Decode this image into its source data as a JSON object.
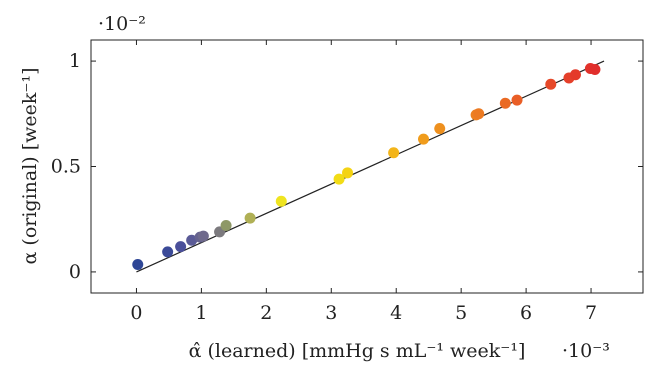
{
  "chart_data": {
    "type": "scatter",
    "title": "",
    "xlabel": "α̂ (learned) [mmHg s mL⁻¹ week⁻¹]",
    "ylabel": "α (original) [week⁻¹]",
    "x_scale_label": "·10⁻³",
    "y_scale_label": "·10⁻²",
    "xlim": [
      -0.7,
      7.8
    ],
    "ylim": [
      -0.1,
      1.1
    ],
    "x_ticks": [
      0,
      1,
      2,
      3,
      4,
      5,
      6,
      7
    ],
    "x_tick_labels": [
      "0",
      "1",
      "2",
      "3",
      "4",
      "5",
      "6",
      "7"
    ],
    "y_ticks": [
      0,
      0.5,
      1
    ],
    "y_tick_labels": [
      "0",
      "0.5",
      "1"
    ],
    "grid": false,
    "fit_line": {
      "x": [
        0,
        7.2
      ],
      "y": [
        0,
        1.0
      ]
    },
    "points": [
      {
        "x": 0.02,
        "y": 0.035,
        "color": "#2e4696"
      },
      {
        "x": 0.48,
        "y": 0.095,
        "color": "#3b4a98"
      },
      {
        "x": 0.68,
        "y": 0.12,
        "color": "#4a4f9a"
      },
      {
        "x": 0.85,
        "y": 0.15,
        "color": "#5a5a96"
      },
      {
        "x": 0.98,
        "y": 0.165,
        "color": "#66638f"
      },
      {
        "x": 1.03,
        "y": 0.17,
        "color": "#6f6a8c"
      },
      {
        "x": 1.28,
        "y": 0.19,
        "color": "#7c7a7e"
      },
      {
        "x": 1.38,
        "y": 0.22,
        "color": "#8e9866"
      },
      {
        "x": 1.75,
        "y": 0.255,
        "color": "#b0b055"
      },
      {
        "x": 2.23,
        "y": 0.335,
        "color": "#efe420"
      },
      {
        "x": 3.12,
        "y": 0.44,
        "color": "#f2dc16"
      },
      {
        "x": 3.25,
        "y": 0.47,
        "color": "#f4d314"
      },
      {
        "x": 3.96,
        "y": 0.565,
        "color": "#f3b51a"
      },
      {
        "x": 4.42,
        "y": 0.63,
        "color": "#f09c1c"
      },
      {
        "x": 4.67,
        "y": 0.68,
        "color": "#ee901e"
      },
      {
        "x": 5.23,
        "y": 0.745,
        "color": "#ed8020"
      },
      {
        "x": 5.27,
        "y": 0.75,
        "color": "#ec7a22"
      },
      {
        "x": 5.68,
        "y": 0.8,
        "color": "#ea6a24"
      },
      {
        "x": 5.86,
        "y": 0.815,
        "color": "#e95e26"
      },
      {
        "x": 6.38,
        "y": 0.89,
        "color": "#e64828"
      },
      {
        "x": 6.66,
        "y": 0.92,
        "color": "#e5402a"
      },
      {
        "x": 6.76,
        "y": 0.935,
        "color": "#e43a2a"
      },
      {
        "x": 6.99,
        "y": 0.965,
        "color": "#e2322b"
      },
      {
        "x": 7.06,
        "y": 0.96,
        "color": "#e12e2c"
      }
    ]
  }
}
